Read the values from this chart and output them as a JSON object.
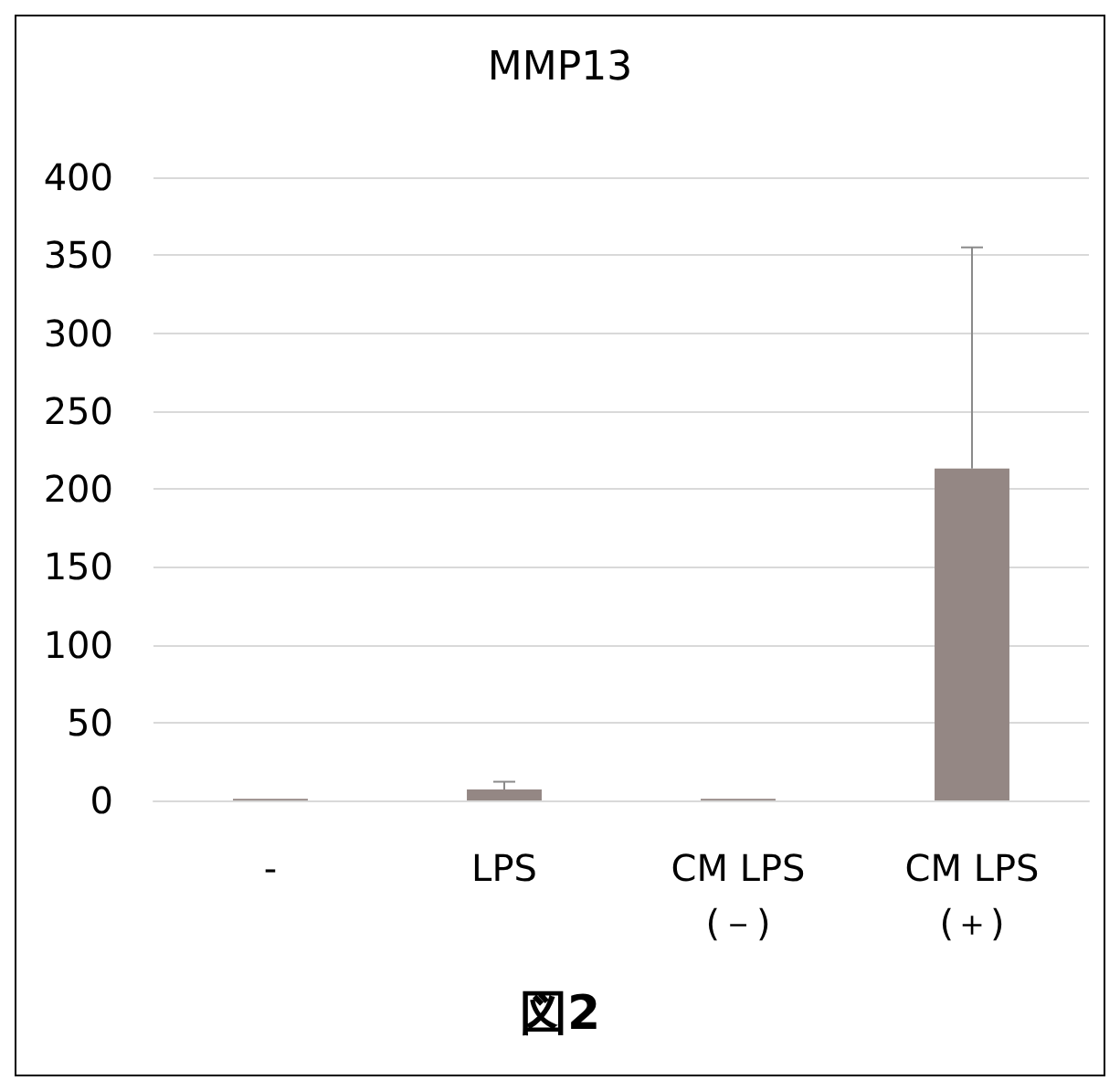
{
  "chart_data": {
    "type": "bar",
    "title": "MMP13",
    "categories": [
      "-",
      "LPS",
      "CM LPS\n(－)",
      "CM LPS\n(＋)"
    ],
    "values": [
      1,
      7,
      1,
      213
    ],
    "errors": [
      null,
      [
        7,
        12
      ],
      null,
      [
        213,
        355
      ]
    ],
    "color": "#948784",
    "ylim": [
      0,
      400
    ],
    "yticks": [
      0,
      50,
      100,
      150,
      200,
      250,
      300,
      350,
      400
    ],
    "grid": "y",
    "annotations": [
      "図2"
    ]
  }
}
